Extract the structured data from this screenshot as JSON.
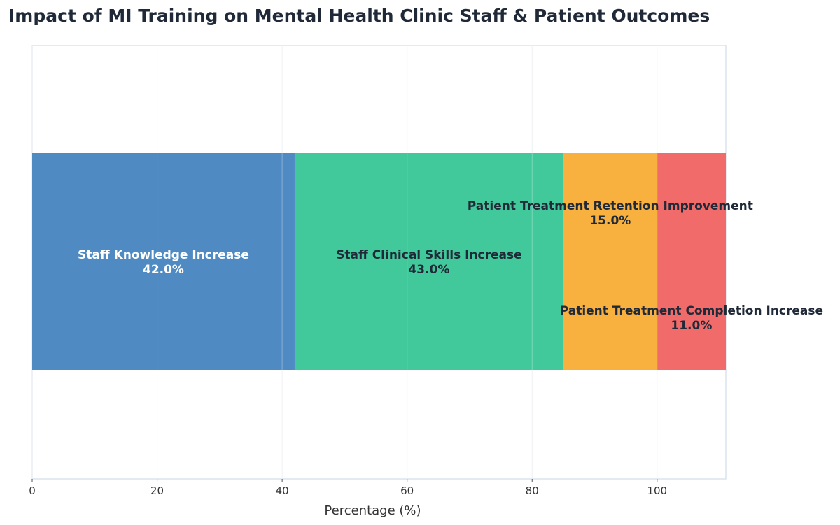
{
  "title": "Impact of MI Training on Mental Health Clinic Staff & Patient Outcomes",
  "chart_data": {
    "type": "bar",
    "orientation": "horizontal-stacked",
    "title": "Impact of MI Training on Mental Health Clinic Staff & Patient Outcomes",
    "xlabel": "Percentage (%)",
    "ylabel": "",
    "xlim": [
      0,
      111
    ],
    "xticks": [
      0,
      20,
      40,
      60,
      80,
      100
    ],
    "grid": true,
    "series": [
      {
        "name": "Staff Knowledge Increase",
        "value": 42.0,
        "label": "42.0%",
        "color": "#4f8ac3",
        "text_color": "#ffffff"
      },
      {
        "name": "Staff Clinical Skills Increase",
        "value": 43.0,
        "label": "43.0%",
        "color": "#42c99b",
        "text_color": "#1f2937"
      },
      {
        "name": "Patient Treatment Retention Improvement",
        "value": 15.0,
        "label": "15.0%",
        "color": "#f8b03e",
        "text_color": "#1f2937"
      },
      {
        "name": "Patient Treatment Completion Increase",
        "value": 11.0,
        "label": "11.0%",
        "color": "#f26b6b",
        "text_color": "#1f2937"
      }
    ]
  }
}
